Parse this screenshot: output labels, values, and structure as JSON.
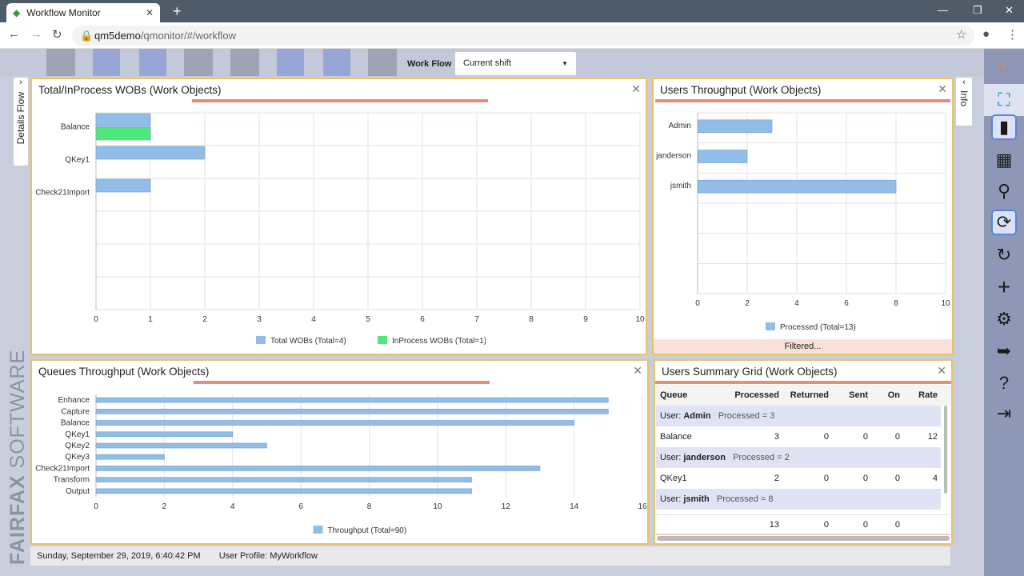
{
  "browser": {
    "tab_title": "Workflow Monitor",
    "url_host": "qm5demo",
    "url_path": "/qmonitor/#/workflow"
  },
  "toolbar": {
    "workflow_label": "Work Flow",
    "workflow_value": "Current shift"
  },
  "side_tabs": {
    "left": "Details Flow",
    "right": "Info"
  },
  "brand": "FAIRFAX SOFTWARE",
  "panels": {
    "total": {
      "title": "Total/InProcess WOBs (Work Objects)"
    },
    "users": {
      "title": "Users Throughput (Work Objects)",
      "footer": "Filtered..."
    },
    "queues": {
      "title": "Queues Throughput (Work Objects)"
    },
    "grid": {
      "title": "Users Summary Grid (Work Objects)"
    }
  },
  "chart_data": [
    {
      "type": "bar",
      "orientation": "horizontal",
      "title": "Total/InProcess WOBs (Work Objects)",
      "categories": [
        "Balance",
        "QKey1",
        "Check21Import",
        "",
        "",
        ""
      ],
      "series": [
        {
          "name": "Total WOBs (Total=4)",
          "color": "#92bde6",
          "values": [
            1,
            2,
            1,
            null,
            null,
            null
          ]
        },
        {
          "name": "InProcess WOBs (Total=1)",
          "color": "#4ee87a",
          "values": [
            1,
            null,
            null,
            null,
            null,
            null
          ]
        }
      ],
      "xlim": [
        0,
        10
      ],
      "xticks": [
        0,
        1,
        2,
        3,
        4,
        5,
        6,
        7,
        8,
        9,
        10
      ],
      "legend": "bottom"
    },
    {
      "type": "bar",
      "orientation": "horizontal",
      "title": "Users Throughput (Work Objects)",
      "categories": [
        "Admin",
        "janderson",
        "jsmith",
        "",
        "",
        ""
      ],
      "series": [
        {
          "name": "Processed (Total=13)",
          "color": "#92bde6",
          "values": [
            3,
            2,
            8,
            null,
            null,
            null
          ]
        }
      ],
      "xlim": [
        0,
        10
      ],
      "xticks": [
        0,
        2,
        4,
        6,
        8,
        10
      ],
      "legend": "bottom"
    },
    {
      "type": "bar",
      "orientation": "horizontal",
      "title": "Queues Throughput (Work Objects)",
      "categories": [
        "Enhance",
        "Capture",
        "Balance",
        "QKey1",
        "QKey2",
        "QKey3",
        "Check21Import",
        "Transform",
        "Output"
      ],
      "series": [
        {
          "name": "Throughput (Total=90)",
          "color": "#92bde6",
          "values": [
            15,
            15,
            14,
            4,
            5,
            2,
            13,
            11,
            11
          ]
        }
      ],
      "xlim": [
        0,
        16
      ],
      "xticks": [
        0,
        2,
        4,
        6,
        8,
        10,
        12,
        14,
        16
      ],
      "legend": "bottom"
    }
  ],
  "grid": {
    "columns": [
      "Queue",
      "Processed",
      "Returned",
      "Sent",
      "On",
      "Rate"
    ],
    "groups": [
      {
        "user_label": "User:",
        "user": "Admin",
        "summary": "Processed = 3",
        "row": [
          "Balance",
          "3",
          "0",
          "0",
          "0",
          "12"
        ]
      },
      {
        "user_label": "User:",
        "user": "janderson",
        "summary": "Processed = 2",
        "row": [
          "QKey1",
          "2",
          "0",
          "0",
          "0",
          "4"
        ]
      },
      {
        "user_label": "User:",
        "user": "jsmith",
        "summary": "Processed = 8"
      }
    ],
    "totals": [
      "",
      "13",
      "0",
      "0",
      "0",
      ""
    ]
  },
  "status": {
    "datetime": "Sunday, September 29, 2019, 6:40:42 PM",
    "profile": "User Profile: MyWorkflow"
  }
}
